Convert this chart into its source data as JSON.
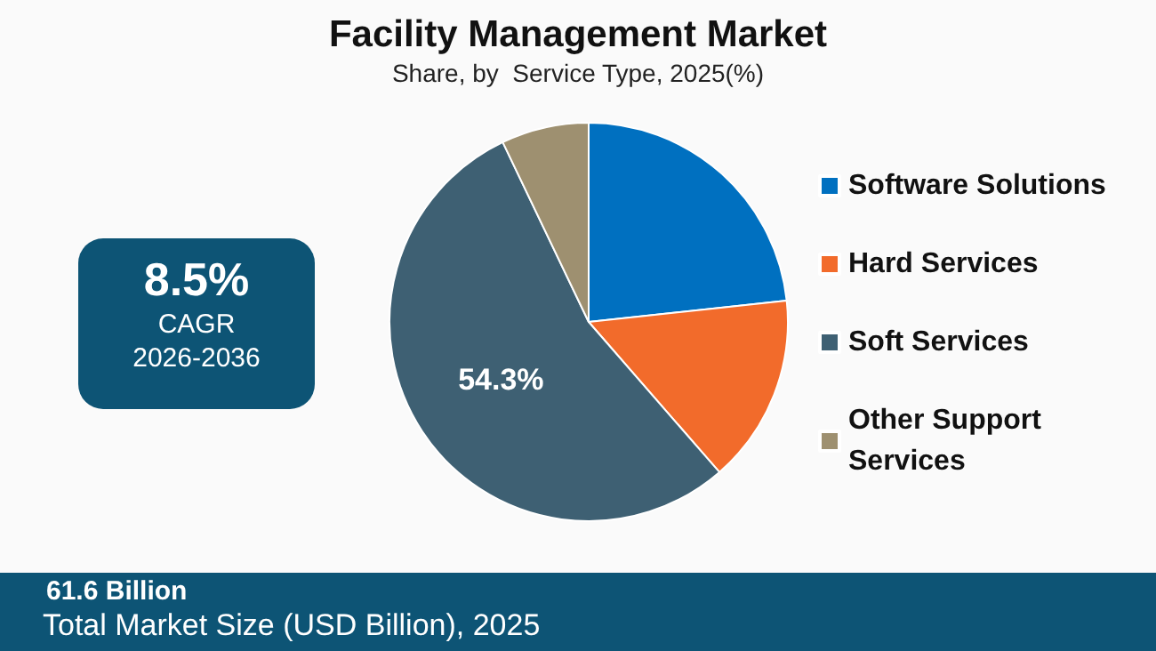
{
  "chart_data": {
    "type": "pie",
    "title": "Facility Management Market",
    "subtitle": "Share, by  Service Type, 2025(%)",
    "categories": [
      "Software Solutions",
      "Hard Services",
      "Soft Services",
      "Other Support Services"
    ],
    "values": [
      23.3,
      15.3,
      54.3,
      7.1
    ],
    "colors": [
      "#0070c0",
      "#f26b2b",
      "#3e6073",
      "#9e9070"
    ],
    "value_labels": [
      null,
      null,
      "54.3%",
      null
    ],
    "legend": "right",
    "annotations": [
      "8.5%",
      "CAGR",
      "2026-2036",
      "61.6 Billion",
      "Total Market Size (USD Billion), 2025"
    ]
  }
}
